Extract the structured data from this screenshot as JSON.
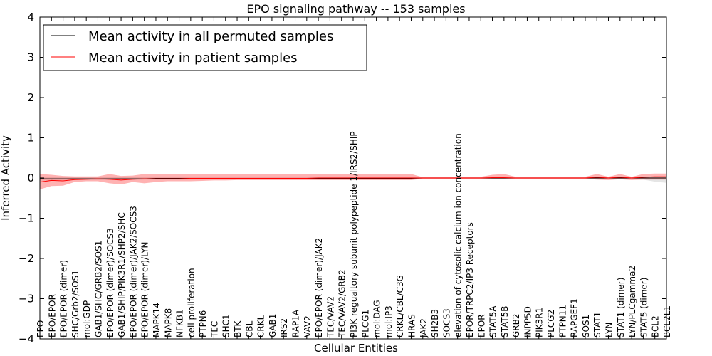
{
  "chart_data": {
    "type": "line",
    "title": "EPO signaling pathway -- 153 samples",
    "xlabel": "Cellular Entities",
    "ylabel": "Inferred Activity",
    "ylim": [
      -4,
      4
    ],
    "yticks": [
      4,
      3,
      2,
      1,
      0,
      -1,
      -2,
      -3,
      -4
    ],
    "ytick_labels": [
      "4",
      "3",
      "2",
      "1",
      "0",
      "−1",
      "−2",
      "−3",
      "−4"
    ],
    "legend_position": "top-left",
    "categories": [
      "EPO",
      "EPO/EPOR",
      "EPO/EPOR (dimer)",
      "SHC/Grb2/SOS1",
      "mol:GDP",
      "GAB1/SHC/GRB2/SOS1",
      "EPO/EPOR (dimer)/SOCS3",
      "GAB1/SHIP/PIK3R1/SHP2/SHC",
      "EPO/EPOR (dimer)/JAK2/SOCS3",
      "EPO/EPOR (dimer)/LYN",
      "MAPK14",
      "MAPK8",
      "NFKB1",
      "cell proliferation",
      "PTPN6",
      "TEC",
      "SHC1",
      "BTK",
      "CBL",
      "CRKL",
      "GAB1",
      "IRS2",
      "RAP1A",
      "VAV2",
      "EPO/EPOR (dimer)/JAK2",
      "TEC/VAV2",
      "TEC/VAV2/GRB2",
      "PI3K regualtory subunit polypeptide 1/IRS2/SHIP",
      "PLCG1",
      "mol:DAG",
      "mol:IP3",
      "CRKL/CBL/C3G",
      "HRAS",
      "JAK2",
      "SH2B3",
      "SOCS3",
      "elevation of cytosolic calcium ion concentration",
      "EPOR/TRPC2/IP3 Receptors",
      "EPOR",
      "STAT5A",
      "STAT5B",
      "GRB2",
      "INPP5D",
      "PIK3R1",
      "PLCG2",
      "PTPN11",
      "RAPGEF1",
      "SOS1",
      "STAT1",
      "LYN",
      "STAT1 (dimer)",
      "LYN/PLCgamma2",
      "STAT5 (dimer)",
      "BCL2",
      "BCL2L1"
    ],
    "series": [
      {
        "name": "Mean activity in all permuted samples",
        "color": "#000000",
        "values": [
          -0.02,
          -0.02,
          -0.02,
          -0.02,
          -0.02,
          -0.02,
          -0.02,
          -0.02,
          -0.02,
          -0.02,
          -0.01,
          -0.01,
          -0.01,
          -0.01,
          -0.01,
          -0.01,
          -0.01,
          -0.01,
          -0.01,
          -0.01,
          -0.01,
          -0.01,
          -0.01,
          -0.01,
          -0.01,
          -0.01,
          -0.01,
          -0.01,
          -0.01,
          -0.01,
          -0.01,
          -0.01,
          -0.01,
          0,
          0,
          0,
          0,
          0,
          0,
          0,
          0,
          0,
          0,
          0,
          0,
          0,
          0,
          0,
          0,
          0,
          0,
          0,
          0,
          0,
          0
        ],
        "lower": [
          -0.06,
          -0.06,
          -0.05,
          -0.05,
          -0.05,
          -0.05,
          -0.05,
          -0.05,
          -0.05,
          -0.04,
          -0.04,
          -0.04,
          -0.04,
          -0.04,
          -0.04,
          -0.04,
          -0.04,
          -0.04,
          -0.04,
          -0.04,
          -0.04,
          -0.04,
          -0.04,
          -0.04,
          -0.04,
          -0.04,
          -0.04,
          -0.04,
          -0.04,
          -0.04,
          -0.04,
          -0.04,
          -0.04,
          -0.03,
          -0.03,
          -0.03,
          -0.03,
          -0.03,
          -0.03,
          -0.03,
          -0.03,
          -0.03,
          -0.03,
          -0.03,
          -0.03,
          -0.03,
          -0.03,
          -0.03,
          -0.03,
          -0.03,
          -0.03,
          -0.03,
          -0.04,
          -0.09,
          -0.12
        ],
        "upper": [
          0.02,
          0.02,
          0.02,
          0.02,
          0.02,
          0.02,
          0.02,
          0.02,
          0.02,
          0.02,
          0.02,
          0.02,
          0.02,
          0.02,
          0.02,
          0.02,
          0.02,
          0.02,
          0.02,
          0.02,
          0.02,
          0.02,
          0.02,
          0.02,
          0.02,
          0.02,
          0.02,
          0.02,
          0.02,
          0.02,
          0.02,
          0.02,
          0.02,
          0.02,
          0.02,
          0.02,
          0.02,
          0.02,
          0.02,
          0.02,
          0.02,
          0.02,
          0.02,
          0.02,
          0.02,
          0.02,
          0.02,
          0.02,
          0.02,
          0.02,
          0.02,
          0.02,
          0.02,
          0.03,
          0.03
        ]
      },
      {
        "name": "Mean activity in patient samples",
        "color": "#ff0000",
        "values": [
          -0.1,
          -0.06,
          -0.07,
          -0.04,
          -0.03,
          -0.02,
          -0.03,
          -0.05,
          -0.03,
          -0.02,
          -0.02,
          -0.02,
          -0.02,
          -0.01,
          -0.01,
          -0.01,
          -0.01,
          -0.01,
          -0.01,
          -0.01,
          -0.01,
          -0.01,
          -0.01,
          -0.01,
          0,
          0,
          0,
          0,
          0,
          0,
          0,
          0,
          0,
          0,
          0,
          0,
          0,
          0,
          0,
          0.01,
          0.01,
          0,
          0,
          0,
          0,
          0,
          0,
          0,
          0.02,
          0,
          0.02,
          0,
          0.02,
          0.03,
          0.03
        ],
        "lower": [
          -0.28,
          -0.2,
          -0.19,
          -0.1,
          -0.08,
          -0.08,
          -0.13,
          -0.16,
          -0.1,
          -0.13,
          -0.1,
          -0.08,
          -0.08,
          -0.08,
          -0.07,
          -0.06,
          -0.06,
          -0.05,
          -0.05,
          -0.05,
          -0.05,
          -0.05,
          -0.05,
          -0.05,
          -0.05,
          -0.05,
          -0.05,
          -0.05,
          -0.05,
          -0.05,
          -0.05,
          -0.05,
          -0.05,
          -0.02,
          -0.02,
          -0.02,
          -0.02,
          -0.02,
          -0.02,
          -0.03,
          -0.03,
          -0.02,
          -0.02,
          -0.02,
          -0.02,
          -0.02,
          -0.02,
          -0.02,
          -0.04,
          -0.05,
          -0.03,
          -0.05,
          -0.04,
          -0.04,
          -0.04
        ],
        "upper": [
          0.1,
          0.08,
          0.05,
          0.04,
          0.04,
          0.04,
          0.1,
          0.05,
          0.06,
          0.1,
          0.1,
          0.1,
          0.1,
          0.1,
          0.1,
          0.1,
          0.1,
          0.1,
          0.1,
          0.1,
          0.1,
          0.1,
          0.1,
          0.1,
          0.1,
          0.1,
          0.1,
          0.1,
          0.1,
          0.1,
          0.1,
          0.1,
          0.1,
          0.02,
          0.03,
          0.03,
          0.03,
          0.03,
          0.03,
          0.08,
          0.1,
          0.03,
          0.03,
          0.03,
          0.03,
          0.03,
          0.03,
          0.03,
          0.1,
          0.03,
          0.1,
          0.03,
          0.1,
          0.11,
          0.11
        ]
      }
    ]
  }
}
